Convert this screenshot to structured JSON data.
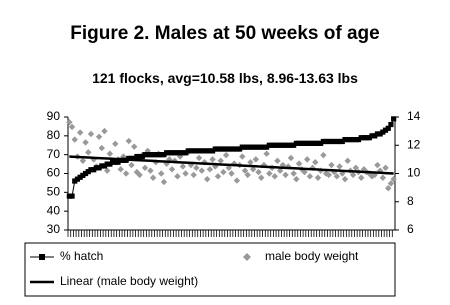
{
  "chart_data": {
    "type": "combo",
    "title": "Figure 2. Males at 50 weeks of age",
    "subtitle": "121 flocks, avg=10.58 lbs, 8.96-13.63 lbs",
    "categories": [
      null,
      null,
      null,
      null,
      null,
      null,
      null,
      null,
      null,
      null,
      null,
      null,
      null,
      null,
      null,
      null,
      null,
      null,
      null,
      null,
      null,
      null,
      null,
      null,
      null,
      null,
      null,
      null,
      null,
      null,
      null,
      null,
      null,
      null,
      null,
      null,
      null,
      null,
      null,
      null,
      null,
      null,
      null,
      null,
      null,
      null,
      null,
      null,
      null,
      null,
      null,
      null,
      null,
      null,
      null,
      null,
      null,
      null,
      null,
      null,
      null,
      null,
      null,
      null,
      null,
      null,
      null,
      null,
      null,
      null,
      null,
      null,
      null,
      null,
      null,
      null,
      null,
      null,
      null,
      null,
      null,
      null,
      null,
      null,
      null,
      null,
      null,
      null,
      null,
      null,
      null,
      null,
      null,
      null,
      null,
      null,
      null,
      null,
      null,
      null,
      null,
      null,
      null,
      null,
      null,
      null,
      null,
      null,
      null,
      null,
      null,
      null,
      null,
      null,
      null,
      null,
      null,
      null,
      null,
      null,
      null
    ],
    "series": [
      {
        "name": "% hatch",
        "color": "#000000",
        "style": "line-marker",
        "marker": "square",
        "values": [
          48,
          48,
          56,
          57,
          58,
          59,
          60,
          61,
          62,
          62,
          63,
          63,
          64,
          64,
          65,
          65,
          66,
          66,
          66,
          67,
          67,
          67,
          68,
          68,
          68,
          69,
          69,
          69,
          70,
          70,
          70,
          70,
          70,
          70,
          70,
          70,
          71,
          71,
          71,
          71,
          71,
          71,
          71,
          71,
          72,
          72,
          72,
          72,
          72,
          72,
          72,
          72,
          72,
          72,
          73,
          73,
          73,
          73,
          73,
          73,
          73,
          73,
          73,
          73,
          74,
          74,
          74,
          74,
          74,
          74,
          74,
          74,
          74,
          74,
          75,
          75,
          75,
          75,
          75,
          75,
          75,
          75,
          75,
          75,
          76,
          76,
          76,
          76,
          76,
          76,
          76,
          76,
          76,
          76,
          77,
          77,
          77,
          77,
          77,
          77,
          77,
          77,
          78,
          78,
          78,
          78,
          78,
          78,
          79,
          79,
          79,
          79,
          80,
          80,
          81,
          81,
          82,
          83,
          84,
          86,
          89
        ]
      },
      {
        "name": "male body weight",
        "color": "#999999",
        "style": "marker",
        "marker": "diamond",
        "axis": "y2",
        "values": [
          13.63,
          13.3,
          12.4,
          11.2,
          12.9,
          10.9,
          12.2,
          11.5,
          12.8,
          11.0,
          10.5,
          12.6,
          11.8,
          13.0,
          10.2,
          11.4,
          10.8,
          12.1,
          11.0,
          10.3,
          11.2,
          10.0,
          12.3,
          10.6,
          11.9,
          10.1,
          9.9,
          11.3,
          10.4,
          11.6,
          10.2,
          9.7,
          10.8,
          11.4,
          10.0,
          9.4,
          10.7,
          11.0,
          10.3,
          10.9,
          9.8,
          11.2,
          10.5,
          10.0,
          11.5,
          10.6,
          9.9,
          10.4,
          11.1,
          10.2,
          10.8,
          9.6,
          10.3,
          11.0,
          10.5,
          9.8,
          10.9,
          10.1,
          11.3,
          10.4,
          10.0,
          10.7,
          9.5,
          10.6,
          11.2,
          10.2,
          9.9,
          10.8,
          10.3,
          11.0,
          10.1,
          9.7,
          10.6,
          11.4,
          10.0,
          10.4,
          9.8,
          10.9,
          10.2,
          10.6,
          9.9,
          10.5,
          11.1,
          10.0,
          9.6,
          10.7,
          10.3,
          10.1,
          11.0,
          9.8,
          10.4,
          10.8,
          9.7,
          10.2,
          11.3,
          10.0,
          9.9,
          10.6,
          10.1,
          9.8,
          10.5,
          10.0,
          9.6,
          10.9,
          10.2,
          9.9,
          10.4,
          10.1,
          9.7,
          10.3,
          10.1,
          10.0,
          9.8,
          9.9,
          10.6,
          10.2,
          9.7,
          10.4,
          8.96,
          9.3,
          9.6
        ]
      },
      {
        "name": "Linear (male body weight)",
        "color": "#000000",
        "style": "line",
        "axis": "y2",
        "values": [
          11.2,
          11.19,
          11.18,
          11.17,
          11.16,
          11.15,
          11.14,
          11.13,
          11.12,
          11.11,
          11.1,
          11.09,
          11.08,
          11.07,
          11.06,
          11.05,
          11.04,
          11.03,
          11.02,
          11.01,
          11.0,
          10.99,
          10.98,
          10.97,
          10.96,
          10.95,
          10.94,
          10.93,
          10.92,
          10.91,
          10.9,
          10.89,
          10.88,
          10.87,
          10.86,
          10.85,
          10.84,
          10.83,
          10.82,
          10.81,
          10.8,
          10.79,
          10.78,
          10.77,
          10.76,
          10.75,
          10.74,
          10.73,
          10.72,
          10.71,
          10.7,
          10.69,
          10.68,
          10.67,
          10.66,
          10.65,
          10.64,
          10.63,
          10.62,
          10.61,
          10.6,
          10.59,
          10.58,
          10.57,
          10.56,
          10.55,
          10.54,
          10.53,
          10.52,
          10.51,
          10.5,
          10.49,
          10.48,
          10.47,
          10.46,
          10.45,
          10.44,
          10.43,
          10.42,
          10.41,
          10.4,
          10.39,
          10.38,
          10.37,
          10.36,
          10.35,
          10.34,
          10.33,
          10.32,
          10.31,
          10.3,
          10.29,
          10.28,
          10.27,
          10.26,
          10.25,
          10.24,
          10.23,
          10.22,
          10.21,
          10.2,
          10.19,
          10.18,
          10.17,
          10.16,
          10.15,
          10.14,
          10.13,
          10.12,
          10.11,
          10.1,
          10.09,
          10.08,
          10.07,
          10.06,
          10.05,
          10.04,
          10.03,
          10.02,
          10.01,
          10.0
        ]
      }
    ],
    "ylim": [
      30,
      90
    ],
    "yticks": [
      30,
      40,
      50,
      60,
      70,
      80,
      90
    ],
    "y2lim": [
      6,
      14
    ],
    "y2ticks": [
      6,
      8,
      10,
      12,
      14
    ],
    "grid": false,
    "legend": "bottom"
  }
}
